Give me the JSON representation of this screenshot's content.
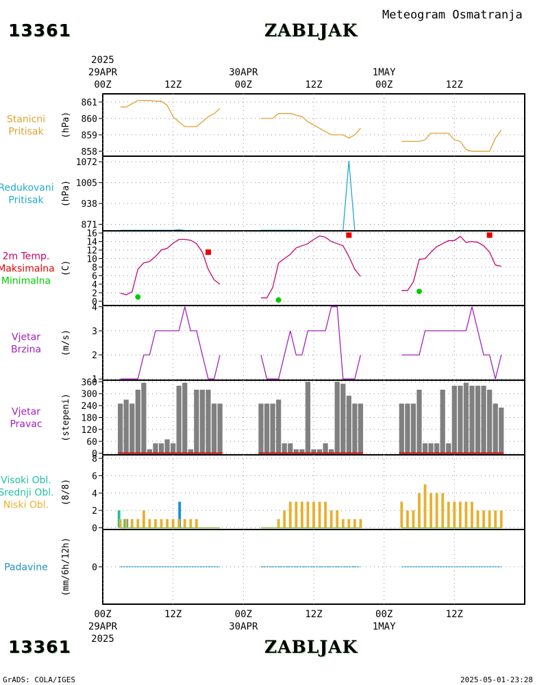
{
  "header": {
    "station_id": "13361",
    "city": "ZABLJAK",
    "subtitle": "Meteogram Osmatranja"
  },
  "footer": {
    "station_id": "13361",
    "city": "ZABLJAK",
    "credit": "GrADS: COLA/IGES",
    "timestamp": "2025-05-01-23:28"
  },
  "time_axis": {
    "ticks": [
      {
        "hour": 0,
        "label": "00Z"
      },
      {
        "hour": 12,
        "label": "12Z"
      },
      {
        "hour": 24,
        "label": "00Z"
      },
      {
        "hour": 36,
        "label": "12Z"
      },
      {
        "hour": 48,
        "label": "00Z"
      },
      {
        "hour": 60,
        "label": "12Z"
      }
    ],
    "date_marks_top": [
      {
        "hour": 0,
        "year": "2025",
        "date": "29APR"
      },
      {
        "hour": 24,
        "year": "",
        "date": "30APR"
      },
      {
        "hour": 48,
        "year": "",
        "date": "1MAY"
      }
    ],
    "date_marks_bottom": [
      {
        "hour": 0,
        "year": "2025",
        "date": "29APR"
      },
      {
        "hour": 24,
        "year": "",
        "date": "30APR"
      },
      {
        "hour": 48,
        "year": "",
        "date": "1MAY"
      }
    ]
  },
  "colors": {
    "pressure": "#e0a030",
    "reduced": "#20a8c8",
    "temp_line": "#c8006a",
    "tmax": "#e80000",
    "tmin": "#00cc00",
    "wind_speed": "#a020c0",
    "wind_dir_bar": "#808080",
    "wind_dir_base": "#c00000",
    "cloud_high": "#20c0a0",
    "cloud_mid": "#1090e0",
    "cloud_low": "#e8b030",
    "cloud_mixed": "#88c040",
    "precip": "#2090c0"
  },
  "chart_data": [
    {
      "type": "line",
      "name": "pressure",
      "title_lines": [
        "Stanicni",
        "Pritisak"
      ],
      "ylabel": "(hPa)",
      "yticks": [
        858,
        859,
        860,
        861
      ],
      "ylim": [
        857.7,
        861.5
      ],
      "segments": [
        {
          "x": [
            3,
            4,
            5,
            6,
            7,
            8,
            9,
            10,
            11,
            12,
            13,
            14,
            15,
            16,
            17,
            18,
            19,
            20
          ],
          "y": [
            860.7,
            860.7,
            860.9,
            861.1,
            861.1,
            861.1,
            861.05,
            861.05,
            860.8,
            860.1,
            859.8,
            859.5,
            859.5,
            859.5,
            859.8,
            860.1,
            860.3,
            860.6
          ]
        },
        {
          "x": [
            27,
            28,
            29,
            30,
            31,
            32,
            33,
            34,
            35,
            36,
            37,
            38,
            39,
            40,
            41,
            42,
            43,
            44
          ],
          "y": [
            860,
            860,
            860,
            860.3,
            860.3,
            860.3,
            860.2,
            860.1,
            859.8,
            859.6,
            859.4,
            859.2,
            859,
            859,
            859,
            858.8,
            859,
            859.4
          ]
        },
        {
          "x": [
            51,
            52,
            53,
            54,
            55,
            56,
            57,
            58,
            59,
            60,
            61,
            62,
            63,
            64,
            65,
            66,
            67,
            68
          ],
          "y": [
            858.6,
            858.6,
            858.6,
            858.6,
            858.7,
            859.1,
            859.1,
            859.1,
            859.1,
            858.7,
            858.6,
            858.1,
            858,
            858,
            858,
            858,
            858.8,
            859.3
          ]
        }
      ]
    },
    {
      "type": "line",
      "name": "reduced_pressure",
      "title_lines": [
        "Redukovani",
        "Pritisak"
      ],
      "ylabel": "(hPa)",
      "yticks": [
        871,
        938,
        1005,
        1072
      ],
      "ylim": [
        850,
        1090
      ],
      "segments": [
        {
          "x": [
            3,
            6,
            9,
            12,
            13,
            14,
            17,
            20
          ],
          "y": [
            852,
            852,
            852,
            852,
            854,
            851,
            851,
            851
          ]
        },
        {
          "x": [
            27,
            30,
            33,
            36,
            39,
            41,
            42,
            43,
            44
          ],
          "y": [
            852,
            852,
            852,
            851,
            851,
            851,
            1075,
            851,
            851
          ]
        },
        {
          "x": [
            51,
            54,
            57,
            60,
            63,
            66,
            68
          ],
          "y": [
            851,
            851,
            851,
            851,
            851,
            851,
            851
          ]
        }
      ]
    },
    {
      "type": "line",
      "name": "temperature",
      "title_lines": [
        "2m Temp.",
        "Maksimalna",
        "Minimalna"
      ],
      "ylabel": "(C)",
      "yticks": [
        0,
        2,
        4,
        6,
        8,
        10,
        12,
        14,
        16
      ],
      "ylim": [
        -1,
        16.5
      ],
      "segments": [
        {
          "x": [
            3,
            4,
            5,
            6,
            7,
            8,
            9,
            10,
            11,
            12,
            13,
            14,
            15,
            16,
            17,
            18,
            19,
            20
          ],
          "y": [
            1.9,
            1.5,
            2.2,
            7.5,
            9,
            9.3,
            10.5,
            12,
            12.4,
            13.6,
            14.5,
            14.5,
            14.3,
            13.5,
            11.5,
            7.5,
            5,
            4
          ]
        },
        {
          "x": [
            27,
            28,
            29,
            30,
            31,
            32,
            33,
            34,
            35,
            36,
            37,
            38,
            39,
            40,
            41,
            42,
            43,
            44
          ],
          "y": [
            0.8,
            0.8,
            3.2,
            9,
            10,
            11,
            12.5,
            13,
            13.5,
            14.5,
            15.3,
            15,
            14,
            13.5,
            13,
            10.5,
            7.5,
            5.8
          ]
        },
        {
          "x": [
            51,
            52,
            53,
            54,
            55,
            56,
            57,
            58,
            59,
            60,
            61,
            62,
            63,
            64,
            65,
            66,
            67,
            68
          ],
          "y": [
            2.5,
            2.5,
            4.5,
            9.8,
            10,
            11.5,
            12.8,
            13.5,
            14.2,
            14.2,
            15.2,
            13.8,
            14,
            13.8,
            13,
            11.5,
            8.5,
            8.2
          ]
        }
      ],
      "tmax_points": [
        {
          "x": 18,
          "y": 11.5
        },
        {
          "x": 42,
          "y": 15.5
        },
        {
          "x": 66,
          "y": 15.5
        }
      ],
      "tmin_points": [
        {
          "x": 6,
          "y": 1
        },
        {
          "x": 30,
          "y": 0.3
        },
        {
          "x": 54,
          "y": 2.3
        }
      ]
    },
    {
      "type": "line",
      "name": "wind_speed",
      "title_lines": [
        "Vjetar",
        "Brzina"
      ],
      "ylabel": "(m/s)",
      "yticks": [
        1,
        2,
        3,
        4
      ],
      "ylim": [
        0.95,
        4.05
      ],
      "segments": [
        {
          "x": [
            3,
            4,
            5,
            6,
            7,
            8,
            9,
            10,
            11,
            12,
            13,
            14,
            15,
            16,
            17,
            18,
            19,
            20
          ],
          "y": [
            1,
            1,
            1,
            1,
            2,
            2,
            3,
            3,
            3,
            3,
            3,
            4,
            3,
            3,
            2,
            1,
            1,
            2
          ]
        },
        {
          "x": [
            27,
            28,
            29,
            30,
            31,
            32,
            33,
            34,
            35,
            36,
            37,
            38,
            39,
            40,
            41,
            42,
            43,
            44
          ],
          "y": [
            2,
            1,
            1,
            1,
            2,
            3,
            2,
            2,
            3,
            3,
            3,
            3,
            4,
            4,
            1,
            1,
            1,
            2
          ]
        },
        {
          "x": [
            51,
            52,
            53,
            54,
            55,
            56,
            57,
            58,
            59,
            60,
            61,
            62,
            63,
            64,
            65,
            66,
            67,
            68
          ],
          "y": [
            2,
            2,
            2,
            2,
            3,
            3,
            3,
            3,
            3,
            3,
            3,
            3,
            4,
            3,
            2,
            2,
            1,
            2
          ]
        }
      ]
    },
    {
      "type": "bar",
      "name": "wind_direction",
      "title_lines": [
        "Vjetar",
        "Pravac"
      ],
      "ylabel": "(stepeni)",
      "yticks": [
        0,
        60,
        120,
        180,
        240,
        300,
        360
      ],
      "ylim": [
        -8,
        368
      ],
      "segments": [
        {
          "x": [
            3,
            4,
            5,
            6,
            7,
            8,
            9,
            10,
            11,
            12,
            13,
            14,
            15,
            16,
            17,
            18,
            19,
            20
          ],
          "y": [
            250,
            270,
            250,
            320,
            355,
            20,
            50,
            50,
            70,
            50,
            340,
            355,
            20,
            320,
            320,
            320,
            250,
            250
          ]
        },
        {
          "x": [
            27,
            28,
            29,
            30,
            31,
            32,
            33,
            34,
            35,
            36,
            37,
            38,
            39,
            40,
            41,
            42,
            43,
            44
          ],
          "y": [
            250,
            250,
            250,
            270,
            50,
            50,
            20,
            20,
            360,
            20,
            20,
            50,
            20,
            360,
            350,
            290,
            250,
            250
          ]
        },
        {
          "x": [
            51,
            52,
            53,
            54,
            55,
            56,
            57,
            58,
            59,
            60,
            61,
            62,
            63,
            64,
            65,
            66,
            67,
            68
          ],
          "y": [
            250,
            250,
            250,
            320,
            50,
            50,
            50,
            320,
            50,
            340,
            340,
            355,
            340,
            340,
            340,
            320,
            250,
            230
          ]
        }
      ]
    },
    {
      "type": "bar",
      "name": "cloud_cover",
      "title_lines": [
        "Visoki Obl.",
        "Srednji Obl.",
        "Niski Obl."
      ],
      "ylabel": "(8/8)",
      "yticks": [
        0,
        2,
        4,
        6,
        8
      ],
      "ylim": [
        -0.2,
        8.4
      ],
      "series": [
        {
          "name": "Visoki Obl.",
          "x": [
            3,
            4
          ],
          "values": [
            2,
            1
          ]
        },
        {
          "name": "Srednji Obl.",
          "x": [
            4,
            13
          ],
          "values": [
            1,
            3
          ]
        },
        {
          "name": "Niski Obl.",
          "x": [
            3,
            4,
            5,
            6,
            7,
            8,
            9,
            10,
            11,
            12,
            13,
            14,
            15,
            16,
            17,
            18,
            19,
            20,
            27,
            28,
            29,
            30,
            31,
            32,
            33,
            34,
            35,
            36,
            37,
            38,
            39,
            40,
            41,
            42,
            43,
            44,
            51,
            52,
            53,
            54,
            55,
            56,
            57,
            58,
            59,
            60,
            61,
            62,
            63,
            64,
            65,
            66,
            67,
            68
          ],
          "values": [
            1,
            1,
            1,
            1,
            2,
            1,
            1,
            1,
            1,
            1,
            1,
            1,
            1,
            1,
            0,
            0,
            0,
            0,
            0,
            0,
            0,
            1,
            2,
            3,
            3,
            3,
            3,
            3,
            3,
            3,
            2,
            2,
            1,
            1,
            1,
            1,
            3,
            2,
            2,
            4,
            5,
            4,
            4,
            4,
            3,
            3,
            3,
            3,
            3,
            2,
            2,
            2,
            2,
            2
          ]
        }
      ]
    },
    {
      "type": "line",
      "name": "precipitation",
      "title_lines": [
        "Padavine"
      ],
      "ylabel": "(mm/6h/12h)",
      "yticks": [
        0
      ],
      "ylim": [
        -1,
        1
      ],
      "segments": [
        {
          "x": [
            3,
            20
          ],
          "y": [
            0,
            0
          ]
        },
        {
          "x": [
            27,
            44
          ],
          "y": [
            0,
            0
          ]
        },
        {
          "x": [
            51,
            68
          ],
          "y": [
            0,
            0
          ]
        }
      ]
    }
  ]
}
